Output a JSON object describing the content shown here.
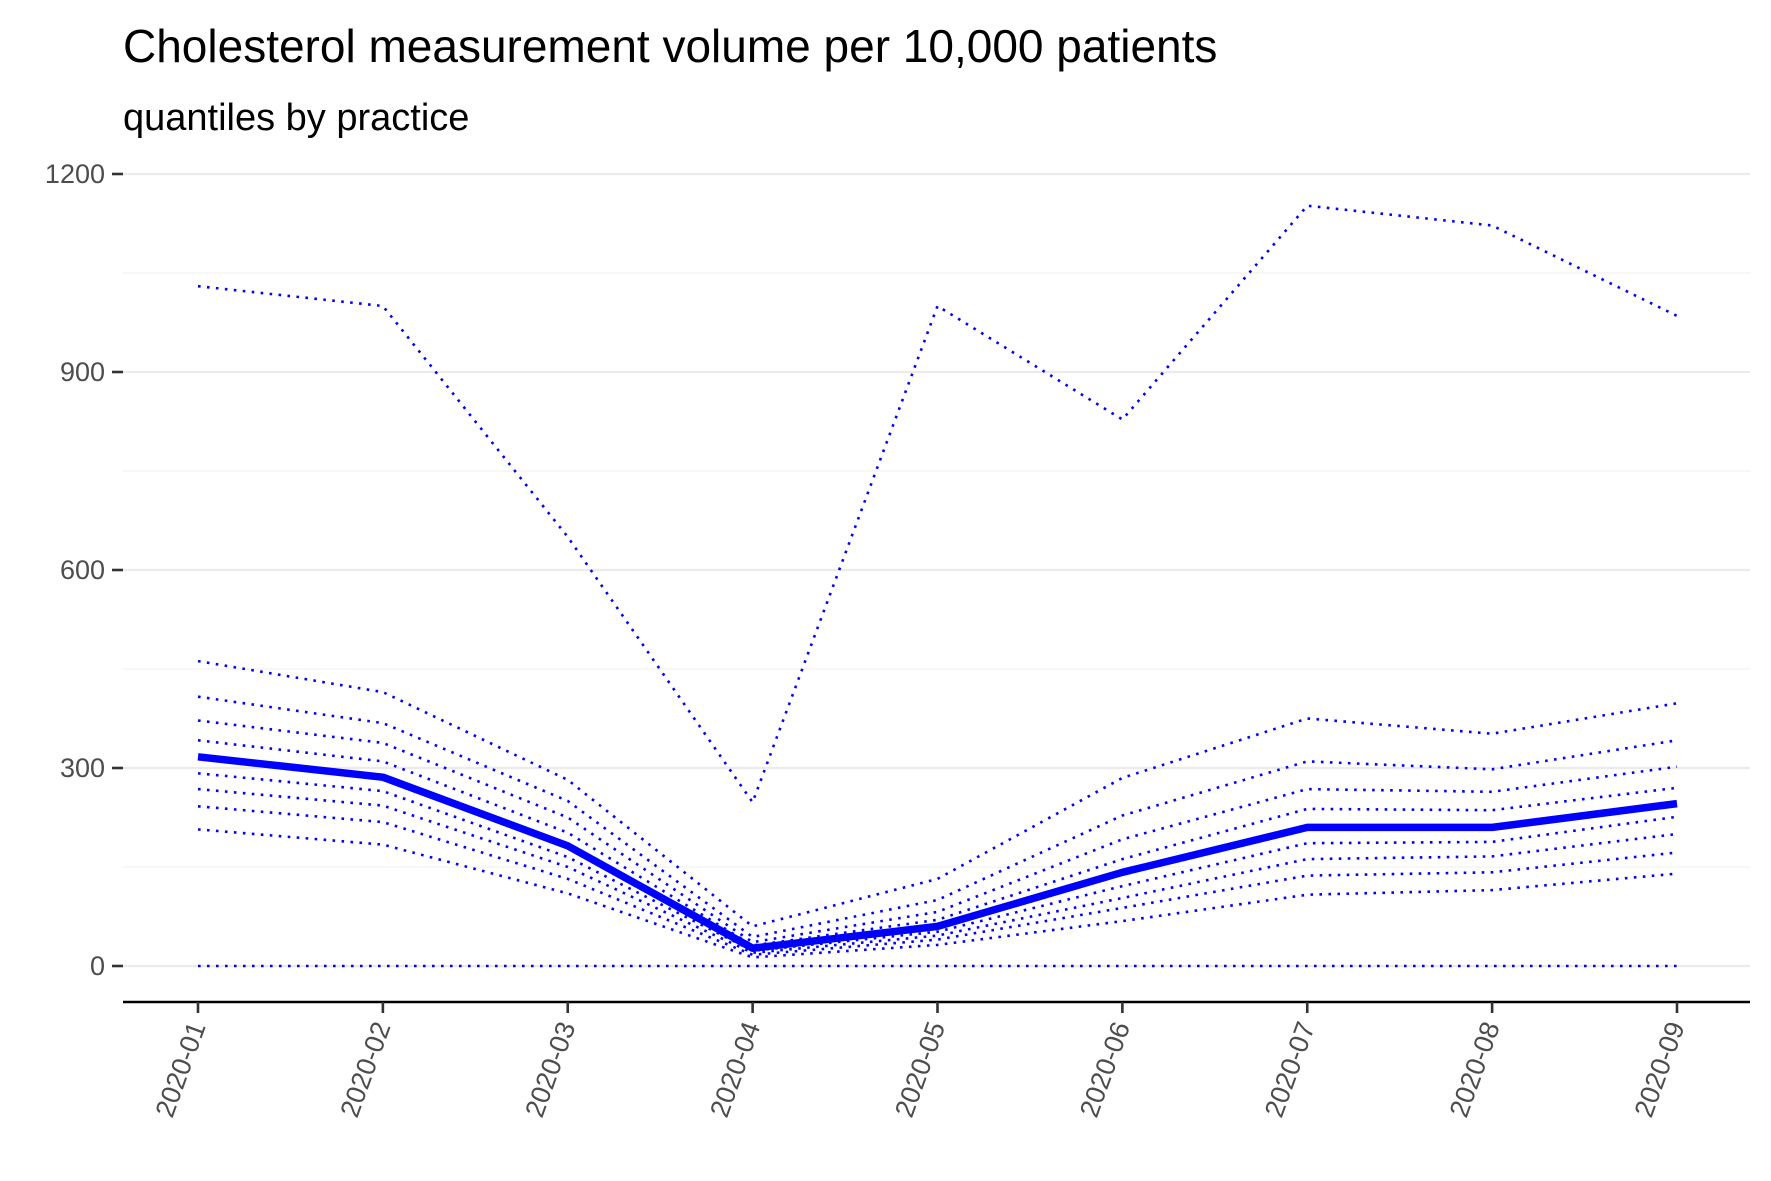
{
  "chart_data": {
    "type": "line",
    "title": "Cholesterol measurement volume per 10,000 patients",
    "subtitle": "quantiles by practice",
    "xlabel": "",
    "ylabel": "",
    "categories": [
      "2020-01",
      "2020-02",
      "2020-03",
      "2020-04",
      "2020-05",
      "2020-06",
      "2020-07",
      "2020-08",
      "2020-09"
    ],
    "ylim": [
      -55,
      1240
    ],
    "yticks": [
      0,
      300,
      600,
      900,
      1200
    ],
    "grid": true,
    "legend": "none",
    "color": "#0000ff",
    "series": [
      {
        "style": "dotted",
        "values": [
          0,
          0,
          0,
          0,
          0,
          0,
          0,
          0,
          0
        ]
      },
      {
        "style": "dotted",
        "values": [
          207,
          184,
          110,
          13,
          32,
          68,
          108,
          115,
          140
        ]
      },
      {
        "style": "dotted",
        "values": [
          242,
          218,
          132,
          17,
          40,
          88,
          137,
          142,
          172
        ]
      },
      {
        "style": "dotted",
        "values": [
          268,
          243,
          150,
          20,
          46,
          103,
          162,
          166,
          200
        ]
      },
      {
        "style": "dotted",
        "values": [
          292,
          265,
          165,
          23,
          52,
          121,
          186,
          188,
          226
        ]
      },
      {
        "style": "solid",
        "values": [
          317,
          286,
          182,
          27,
          60,
          142,
          210,
          210,
          246
        ]
      },
      {
        "style": "dotted",
        "values": [
          342,
          310,
          202,
          31,
          70,
          162,
          238,
          236,
          270
        ]
      },
      {
        "style": "dotted",
        "values": [
          372,
          338,
          225,
          36,
          82,
          192,
          268,
          264,
          302
        ]
      },
      {
        "style": "dotted",
        "values": [
          408,
          368,
          250,
          44,
          100,
          228,
          310,
          298,
          342
        ]
      },
      {
        "style": "dotted",
        "values": [
          462,
          415,
          282,
          60,
          132,
          285,
          375,
          352,
          398
        ]
      },
      {
        "style": "dotted",
        "values": [
          1030,
          1000,
          650,
          248,
          1000,
          828,
          1152,
          1122,
          985
        ]
      }
    ]
  }
}
